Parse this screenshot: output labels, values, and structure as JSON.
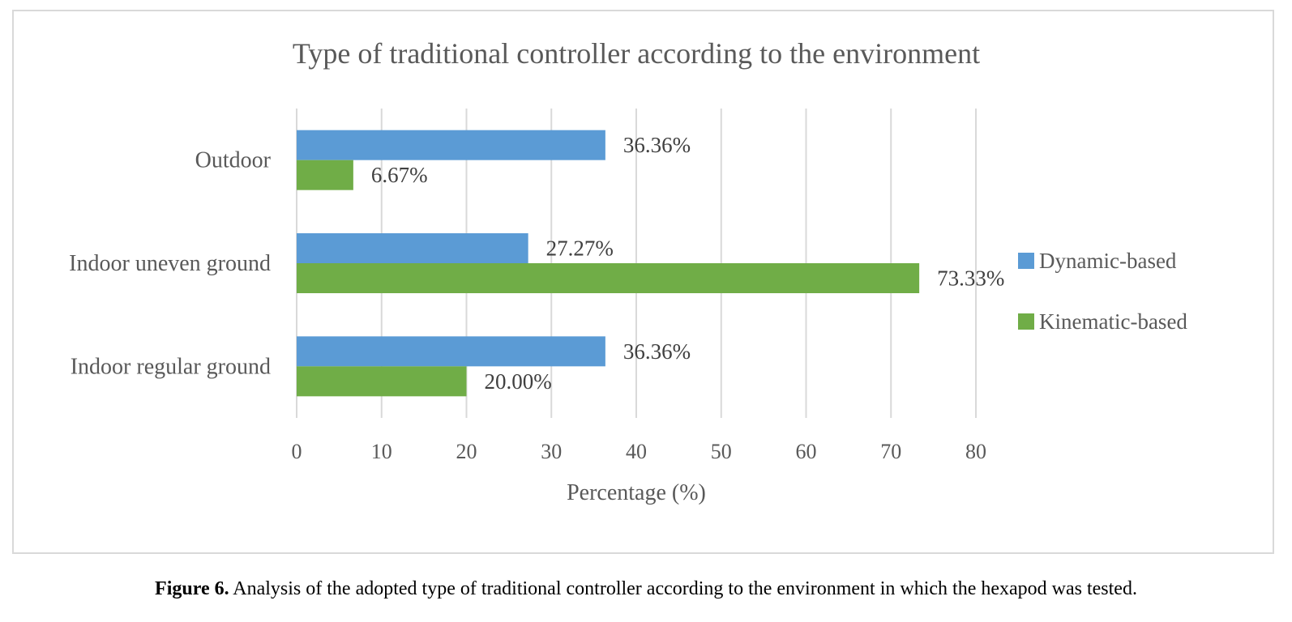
{
  "chart_data": {
    "type": "bar",
    "orientation": "horizontal",
    "title": "Type of traditional controller according to the environment",
    "xlabel": "Percentage (%)",
    "ylabel": "",
    "categories": [
      "Outdoor",
      "Indoor uneven ground",
      "Indoor regular ground"
    ],
    "series": [
      {
        "name": "Dynamic-based",
        "color": "#5b9bd5",
        "values": [
          36.36,
          27.27,
          36.36
        ],
        "labels": [
          "36.36%",
          "27.27%",
          "36.36%"
        ]
      },
      {
        "name": "Kinematic-based",
        "color": "#70ad47",
        "values": [
          6.67,
          73.33,
          20.0
        ],
        "labels": [
          "6.67%",
          "73.33%",
          "20.00%"
        ]
      }
    ],
    "xlim": [
      0,
      80
    ],
    "xticks": [
      0,
      10,
      20,
      30,
      40,
      50,
      60,
      70,
      80
    ],
    "grid": true,
    "legend": "right"
  },
  "caption": {
    "label": "Figure 6.",
    "text": " Analysis of the adopted type of traditional controller according to the environment in which the hexapod was tested."
  }
}
